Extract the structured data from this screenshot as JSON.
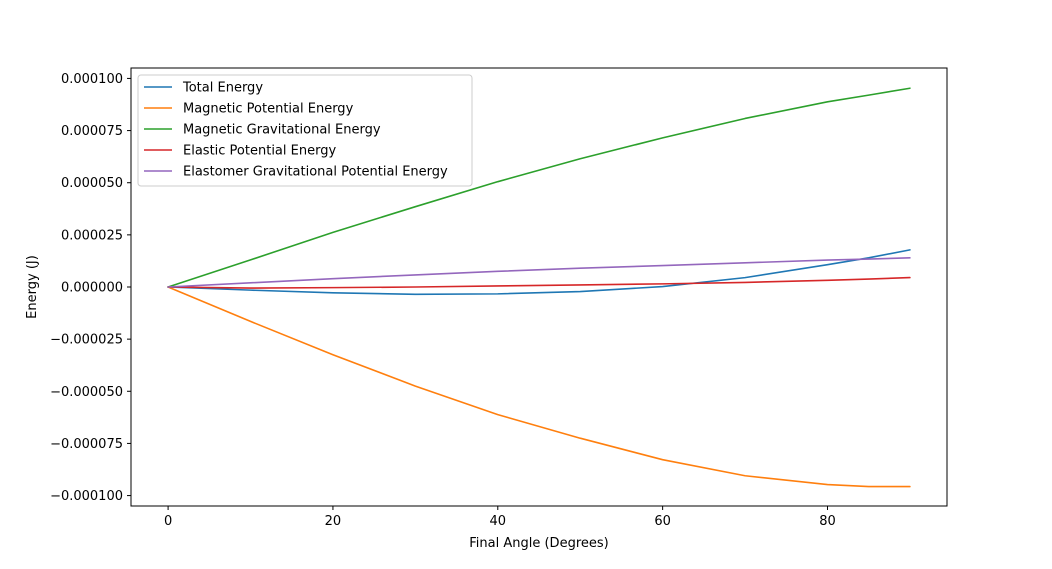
{
  "chart_data": {
    "type": "line",
    "title": "",
    "xlabel": "Final Angle (Degrees)",
    "ylabel": "Energy (J)",
    "xlim": [
      -4.5,
      94.5
    ],
    "ylim": [
      -0.000105,
      0.000105
    ],
    "x_ticks": [
      {
        "value": 0,
        "label": "0"
      },
      {
        "value": 20,
        "label": "20"
      },
      {
        "value": 40,
        "label": "40"
      },
      {
        "value": 60,
        "label": "60"
      },
      {
        "value": 80,
        "label": "80"
      }
    ],
    "y_ticks": [
      {
        "value": 0.0001,
        "label": "0.000100"
      },
      {
        "value": 7.5e-05,
        "label": "0.000075"
      },
      {
        "value": 5e-05,
        "label": "0.000050"
      },
      {
        "value": 2.5e-05,
        "label": "0.000025"
      },
      {
        "value": 0.0,
        "label": "0.000000"
      },
      {
        "value": -2.5e-05,
        "label": "−0.000025"
      },
      {
        "value": -5e-05,
        "label": "−0.000050"
      },
      {
        "value": -7.5e-05,
        "label": "−0.000075"
      },
      {
        "value": -0.0001,
        "label": "−0.000100"
      }
    ],
    "grid": false,
    "legend_position": "top-left",
    "x": [
      0,
      10,
      20,
      30,
      40,
      50,
      60,
      70,
      80,
      85,
      90
    ],
    "series": [
      {
        "name": "Total Energy",
        "color": "#1f77b4",
        "values": [
          0,
          -1.5e-06,
          -2.8e-06,
          -3.5e-06,
          -3.3e-06,
          -2.2e-06,
          2e-07,
          4.5e-06,
          1.07e-05,
          1.4e-05,
          1.78e-05
        ]
      },
      {
        "name": "Magnetic Potential Energy",
        "color": "#ff7f0e",
        "values": [
          0,
          -1.65e-05,
          -3.25e-05,
          -4.75e-05,
          -6.12e-05,
          -7.25e-05,
          -8.28e-05,
          -9.05e-05,
          -9.47e-05,
          -9.57e-05,
          -9.57e-05
        ]
      },
      {
        "name": "Magnetic Gravitational Energy",
        "color": "#2ca02c",
        "values": [
          0,
          1.3e-05,
          2.62e-05,
          3.85e-05,
          5.05e-05,
          6.15e-05,
          7.15e-05,
          8.08e-05,
          8.88e-05,
          9.2e-05,
          9.53e-05
        ]
      },
      {
        "name": "Elastic Potential Energy",
        "color": "#d62728",
        "values": [
          0,
          -5e-07,
          -3e-07,
          0.0,
          5e-07,
          1e-06,
          1.5e-06,
          2.2e-06,
          3.2e-06,
          3.8e-06,
          4.5e-06
        ]
      },
      {
        "name": "Elastomer Gravitational Potential Energy",
        "color": "#9467bd",
        "values": [
          0,
          2e-06,
          4e-06,
          5.8e-06,
          7.5e-06,
          9e-06,
          1.03e-05,
          1.16e-05,
          1.29e-05,
          1.34e-05,
          1.4e-05
        ]
      }
    ]
  }
}
